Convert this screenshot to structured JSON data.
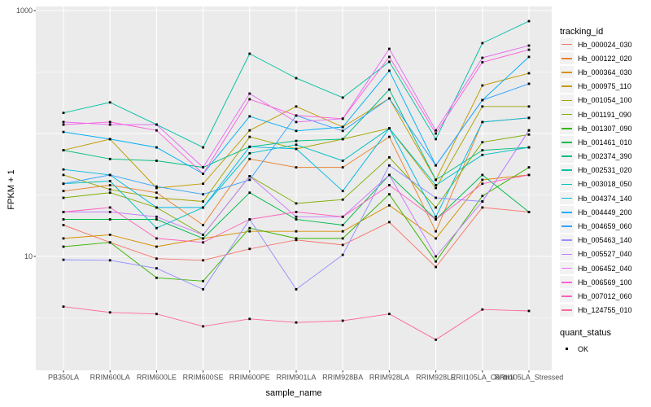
{
  "chart_data": {
    "type": "line",
    "title": "",
    "xlabel": "sample_name",
    "ylabel": "FPKM + 1",
    "y_scale": "log10",
    "ylim": [
      1.18,
      1080
    ],
    "grid": true,
    "legend_position": "right",
    "legend_title": "tracking_id",
    "categories": [
      "PB350LA",
      "RRIM600LA",
      "RRIM600LE",
      "RRIM600SE",
      "RRIM600PE",
      "RRIM901LA",
      "RRIM928BA",
      "RRIM928LA",
      "RRIM928LE",
      "RRII105LA_Control",
      "RRII105LA_Stressed"
    ],
    "series": [
      {
        "name": "Hb_000024_030",
        "color": "#F8766D",
        "values": [
          18,
          13,
          9.6,
          9.3,
          11.5,
          13.6,
          12.4,
          19,
          8.2,
          25,
          23
        ]
      },
      {
        "name": "Hb_000122_020",
        "color": "#EA8331",
        "values": [
          34,
          38,
          33,
          18,
          62,
          53,
          53,
          94,
          16,
          124,
          134
        ]
      },
      {
        "name": "Hb_000364_030",
        "color": "#D89000",
        "values": [
          14,
          15,
          12,
          14,
          16,
          16,
          16,
          26,
          14,
          42,
          46
        ]
      },
      {
        "name": "Hb_000975_110",
        "color": "#C09B00",
        "values": [
          73,
          90,
          36,
          39,
          106,
          166,
          113,
          193,
          42,
          246,
          309
        ]
      },
      {
        "name": "Hb_001054_100",
        "color": "#A3A500",
        "values": [
          46,
          35,
          30,
          28,
          94,
          75,
          90,
          110,
          36,
          166,
          166
        ]
      },
      {
        "name": "Hb_001191_090",
        "color": "#7CAE00",
        "values": [
          30,
          33,
          25,
          15,
          45,
          27,
          29,
          64,
          25,
          85,
          98
        ]
      },
      {
        "name": "Hb_001307_090",
        "color": "#39B600",
        "values": [
          12,
          13,
          6.7,
          6.3,
          17,
          14,
          14,
          32,
          9.1,
          31,
          53
        ]
      },
      {
        "name": "Hb_001461_010",
        "color": "#00BB4E",
        "values": [
          20,
          20,
          20,
          14,
          33,
          20,
          18,
          46,
          20,
          46,
          23
        ]
      },
      {
        "name": "Hb_002374_390",
        "color": "#00BF7D",
        "values": [
          73,
          62,
          60,
          53,
          78,
          87,
          90,
          228,
          42,
          73,
          77
        ]
      },
      {
        "name": "Hb_002531_020",
        "color": "#00C1A3",
        "values": [
          147,
          179,
          118,
          77,
          446,
          282,
          196,
          383,
          90,
          543,
          820
        ]
      },
      {
        "name": "Hb_003018_050",
        "color": "#00BFC4",
        "values": [
          39,
          41,
          17,
          25,
          69,
          81,
          60,
          110,
          38,
          67,
          77
        ]
      },
      {
        "name": "Hb_004374_140",
        "color": "#00BAE0",
        "values": [
          51,
          46,
          25,
          25,
          78,
          75,
          34,
          110,
          21,
          124,
          134
        ]
      },
      {
        "name": "Hb_004449_200",
        "color": "#00B0F6",
        "values": [
          103,
          90,
          77,
          47,
          138,
          105,
          113,
          324,
          55,
          187,
          420
        ]
      },
      {
        "name": "Hb_004659_060",
        "color": "#35A2FF",
        "values": [
          39,
          46,
          37,
          32,
          42,
          140,
          105,
          193,
          55,
          187,
          254
        ]
      },
      {
        "name": "Hb_005463_140",
        "color": "#9590FF",
        "values": [
          9.4,
          9.3,
          8,
          5.4,
          20,
          5.4,
          10.3,
          55,
          30,
          28,
          106
        ]
      },
      {
        "name": "Hb_005527_040",
        "color": "#C77CFF",
        "values": [
          23,
          23,
          21,
          15,
          45,
          21,
          21,
          46,
          10,
          28,
          106
        ]
      },
      {
        "name": "Hb_006452_040",
        "color": "#E76BF3",
        "values": [
          124,
          118,
          118,
          53,
          211,
          124,
          132,
          488,
          106,
          413,
          519
        ]
      },
      {
        "name": "Hb_006569_100",
        "color": "#FA62DB",
        "values": [
          118,
          124,
          106,
          47,
          190,
          140,
          132,
          420,
          100,
          380,
          480
        ]
      },
      {
        "name": "Hb_007012_060",
        "color": "#FF62BC",
        "values": [
          23,
          25,
          14,
          13,
          20,
          23,
          21,
          38,
          20,
          39,
          46
        ]
      },
      {
        "name": "Hb_124755_010",
        "color": "#FF6A98",
        "values": [
          3.9,
          3.5,
          3.4,
          2.7,
          3.1,
          2.9,
          3,
          3.4,
          2.1,
          3.7,
          3.6
        ]
      }
    ],
    "y_axis": {
      "ticks": [
        {
          "label": "1000",
          "value": 1000
        },
        {
          "label": "10",
          "value": 10
        }
      ],
      "major_gridlines": [
        10,
        100,
        1000
      ],
      "minor_gridlines": [
        3.162,
        31.62,
        316.2
      ]
    },
    "status_legend": {
      "title": "quant_status",
      "items": [
        {
          "label": "OK"
        }
      ]
    },
    "colors": {
      "panel": "#EBEBEB",
      "grid": "#FFFFFF",
      "axis_text": "#4D4D4D",
      "tick_mark": "#333333",
      "point": "#000000",
      "legend_key_bg": "#F2F2F2"
    }
  }
}
